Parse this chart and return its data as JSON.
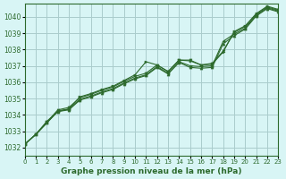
{
  "xlabel": "Graphe pression niveau de la mer (hPa)",
  "ylabel": "",
  "background_color": "#d8f5f5",
  "plot_bg_color": "#d8f5f5",
  "grid_color": "#aacccc",
  "line_color": "#2d6a2d",
  "marker_color": "#2d6a2d",
  "xlim": [
    0,
    23
  ],
  "ylim": [
    1031.5,
    1040.8
  ],
  "yticks": [
    1032,
    1033,
    1034,
    1035,
    1036,
    1037,
    1038,
    1039,
    1040
  ],
  "xticks": [
    0,
    1,
    2,
    3,
    4,
    5,
    6,
    7,
    8,
    9,
    10,
    11,
    12,
    13,
    14,
    15,
    16,
    17,
    18,
    19,
    20,
    21,
    22,
    23
  ],
  "series": [
    [
      1032.2,
      1032.8,
      1033.6,
      1034.2,
      1034.35,
      1035.1,
      1035.3,
      1035.55,
      1035.75,
      1036.1,
      1036.45,
      1037.25,
      1037.05,
      1036.65,
      1037.35,
      1037.3,
      1037.05,
      1037.1,
      1037.85,
      1039.1,
      1039.45,
      1040.2,
      1040.65,
      1040.45
    ],
    [
      1032.2,
      1032.8,
      1033.55,
      1034.3,
      1034.45,
      1035.05,
      1035.25,
      1035.5,
      1035.7,
      1036.05,
      1036.35,
      1036.55,
      1037.05,
      1036.65,
      1037.35,
      1037.35,
      1037.05,
      1037.15,
      1037.9,
      1039.05,
      1039.4,
      1040.15,
      1040.6,
      1040.4
    ],
    [
      1032.2,
      1032.8,
      1033.5,
      1034.25,
      1034.35,
      1034.95,
      1035.15,
      1035.4,
      1035.6,
      1035.95,
      1036.25,
      1036.45,
      1036.95,
      1036.55,
      1037.25,
      1037.0,
      1036.95,
      1037.0,
      1038.5,
      1038.95,
      1039.3,
      1040.1,
      1040.55,
      1040.35
    ],
    [
      1032.2,
      1032.8,
      1033.5,
      1034.2,
      1034.3,
      1034.9,
      1035.1,
      1035.35,
      1035.55,
      1035.9,
      1036.2,
      1036.4,
      1036.9,
      1036.5,
      1037.2,
      1036.9,
      1036.85,
      1036.9,
      1038.35,
      1038.85,
      1039.25,
      1040.05,
      1040.5,
      1040.3
    ]
  ]
}
